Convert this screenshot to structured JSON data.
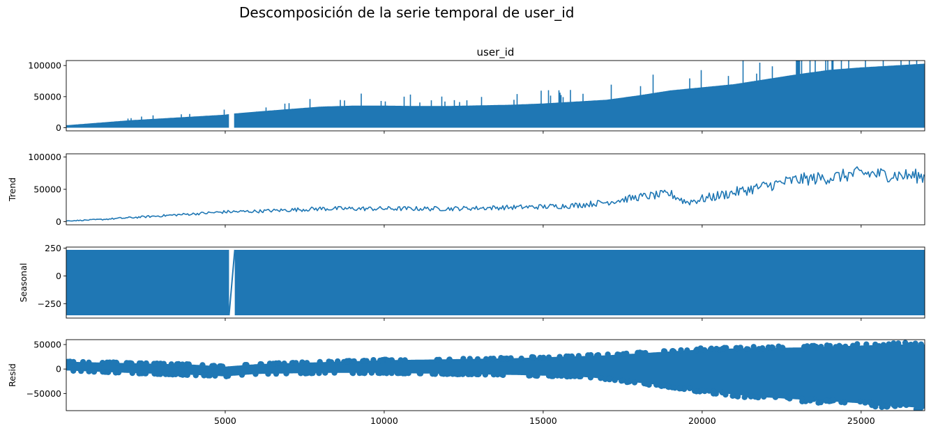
{
  "figure": {
    "suptitle": "Descomposición de la serie temporal de user_id"
  },
  "colors": {
    "series": "#1f77b4",
    "axis": "#000000"
  },
  "chart_data": [
    {
      "type": "line",
      "title": "user_id",
      "ylabel": "",
      "xlim": [
        0,
        27000
      ],
      "ylim": [
        -5000,
        108000
      ],
      "yticks": [
        0,
        50000,
        100000
      ],
      "ytick_labels": [
        "0",
        "50000",
        "100000"
      ],
      "xticks": [
        5000,
        10000,
        15000,
        20000,
        25000
      ],
      "xtick_labels": [],
      "grid": false,
      "series": [
        {
          "band": "observed",
          "x": [
            0,
            1000,
            2000,
            3000,
            4000,
            5000,
            5200,
            6000,
            7000,
            8000,
            9000,
            10000,
            11000,
            12000,
            13000,
            14000,
            15000,
            16000,
            17000,
            18000,
            19000,
            20000,
            21000,
            22000,
            23000,
            24000,
            25000,
            26000,
            27000
          ],
          "upper": [
            4000,
            8000,
            12000,
            15000,
            18000,
            21000,
            22500,
            26000,
            30000,
            34000,
            35500,
            35500,
            35000,
            35000,
            36000,
            37000,
            39000,
            42000,
            45000,
            52000,
            60000,
            65000,
            70000,
            78000,
            86000,
            93000,
            97000,
            100000,
            103000
          ],
          "lower": [
            0,
            0,
            0,
            0,
            0,
            0,
            0,
            0,
            0,
            0,
            0,
            0,
            0,
            0,
            0,
            0,
            0,
            0,
            0,
            0,
            0,
            0,
            0,
            0,
            0,
            0,
            0,
            0,
            0
          ],
          "gap": [
            5120,
            5280
          ]
        }
      ]
    },
    {
      "type": "line",
      "title": "",
      "ylabel": "Trend",
      "xlim": [
        0,
        27000
      ],
      "ylim": [
        -5000,
        105000
      ],
      "yticks": [
        0,
        50000,
        100000
      ],
      "ytick_labels": [
        "0",
        "50000",
        "100000"
      ],
      "xticks": [
        5000,
        10000,
        15000,
        20000,
        25000
      ],
      "xtick_labels": [],
      "grid": false,
      "series": [
        {
          "band": "trend",
          "x": [
            0,
            1000,
            2000,
            3000,
            4000,
            5000,
            6000,
            7000,
            8000,
            9000,
            10000,
            11000,
            12000,
            13000,
            14000,
            15000,
            16000,
            17000,
            18000,
            19000,
            19500,
            20000,
            21000,
            22000,
            23000,
            24000,
            25000,
            26000,
            27000
          ],
          "values": [
            1000,
            3000,
            6000,
            9000,
            12000,
            15000,
            16000,
            18000,
            20000,
            20000,
            20000,
            20000,
            20000,
            21000,
            22000,
            23000,
            25000,
            30000,
            38000,
            43000,
            30000,
            35000,
            45000,
            55000,
            65000,
            68000,
            75000,
            72000,
            70000
          ],
          "noise": [
            1000,
            2000,
            3000,
            3500,
            4000,
            5000,
            5000,
            6000,
            7000,
            7000,
            7000,
            7000,
            7000,
            7000,
            7500,
            8000,
            9000,
            10000,
            12000,
            14000,
            12000,
            14000,
            16000,
            18000,
            20000,
            20000,
            22000,
            22000,
            22000
          ]
        }
      ]
    },
    {
      "type": "line",
      "title": "",
      "ylabel": "Seasonal",
      "xlim": [
        0,
        27000
      ],
      "ylim": [
        -380,
        260
      ],
      "yticks": [
        -250,
        0,
        250
      ],
      "ytick_labels": [
        "−250",
        "0",
        "250"
      ],
      "xticks": [
        5000,
        10000,
        15000,
        20000,
        25000
      ],
      "xtick_labels": [],
      "grid": false,
      "series": [
        {
          "band": "seasonal",
          "upper": 235,
          "lower": -355,
          "gap": [
            5120,
            5300
          ]
        }
      ]
    },
    {
      "type": "scatter",
      "title": "",
      "ylabel": "Resid",
      "xlim": [
        0,
        27000
      ],
      "ylim": [
        -85000,
        60000
      ],
      "yticks": [
        -50000,
        0,
        50000
      ],
      "ytick_labels": [
        "−50000",
        "0",
        "50000"
      ],
      "xticks": [
        5000,
        10000,
        15000,
        20000,
        25000
      ],
      "xtick_labels": [
        "5000",
        "10000",
        "15000",
        "20000",
        "25000"
      ],
      "grid": false,
      "series": [
        {
          "band": "resid",
          "x": [
            0,
            2000,
            4000,
            5000,
            6000,
            8000,
            10000,
            12000,
            14000,
            16000,
            17000,
            18000,
            19000,
            20000,
            21000,
            22000,
            23000,
            24000,
            25000,
            26000,
            27000
          ],
          "upper": [
            15000,
            12000,
            9000,
            5000,
            10000,
            14000,
            18000,
            20000,
            22000,
            26000,
            28000,
            32000,
            36000,
            40000,
            42000,
            43000,
            44000,
            46000,
            48000,
            50000,
            50000
          ],
          "lower": [
            -3000,
            -8000,
            -12000,
            -15000,
            -10000,
            -8000,
            -8000,
            -10000,
            -12000,
            -15000,
            -20000,
            -28000,
            -35000,
            -45000,
            -52000,
            -58000,
            -62000,
            -66000,
            -70000,
            -75000,
            -80000
          ]
        }
      ]
    }
  ]
}
